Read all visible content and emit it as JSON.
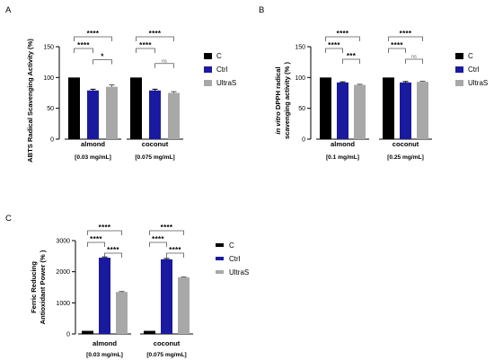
{
  "colors": {
    "C": "#000000",
    "Ctrl": "#1a1aa0",
    "UltraS": "#a8a8a8",
    "axis": "#000000",
    "bracket": "#555555"
  },
  "legend": [
    "C",
    "Ctrl",
    "UltraS"
  ],
  "chart_data": [
    {
      "panel": "A",
      "type": "bar",
      "ylabel": "ABTS Radical Scavenging Activity (%)",
      "ylabel_parts": [],
      "ylim": [
        0,
        150
      ],
      "yticks": [
        0,
        50,
        100,
        150
      ],
      "categories": [
        "almond",
        "coconut"
      ],
      "category_sublabels": [
        "[0.03 mg/mL]",
        "[0.075 mg/mL]"
      ],
      "series": [
        {
          "name": "C",
          "values": [
            100,
            100
          ],
          "errors": [
            0,
            0
          ]
        },
        {
          "name": "Ctrl",
          "values": [
            79,
            79
          ],
          "errors": [
            2,
            2
          ]
        },
        {
          "name": "UltraS",
          "values": [
            85,
            75
          ],
          "errors": [
            3,
            2
          ]
        }
      ],
      "significance": [
        {
          "category": 0,
          "from": 0,
          "to": 2,
          "label": "****"
        },
        {
          "category": 0,
          "from": 0,
          "to": 1,
          "label": "****"
        },
        {
          "category": 0,
          "from": 1,
          "to": 2,
          "label": "*"
        },
        {
          "category": 1,
          "from": 0,
          "to": 2,
          "label": "****"
        },
        {
          "category": 1,
          "from": 0,
          "to": 1,
          "label": "****"
        },
        {
          "category": 1,
          "from": 1,
          "to": 2,
          "label": "ns"
        }
      ]
    },
    {
      "panel": "B",
      "type": "bar",
      "ylabel": "",
      "ylabel_parts": [
        "in vitro",
        " DPPH radical",
        "scavenging activity (% )"
      ],
      "ylim": [
        0,
        150
      ],
      "yticks": [
        0,
        50,
        100,
        150
      ],
      "categories": [
        "almond",
        "coconut"
      ],
      "category_sublabels": [
        "[0.1 mg/mL]",
        "[0.25 mg/mL]"
      ],
      "series": [
        {
          "name": "C",
          "values": [
            100,
            100
          ],
          "errors": [
            0,
            0
          ]
        },
        {
          "name": "Ctrl",
          "values": [
            92,
            92
          ],
          "errors": [
            1,
            1.5
          ]
        },
        {
          "name": "UltraS",
          "values": [
            88,
            93
          ],
          "errors": [
            1,
            1
          ]
        }
      ],
      "significance": [
        {
          "category": 0,
          "from": 0,
          "to": 2,
          "label": "****"
        },
        {
          "category": 0,
          "from": 0,
          "to": 1,
          "label": "****"
        },
        {
          "category": 0,
          "from": 1,
          "to": 2,
          "label": "***"
        },
        {
          "category": 1,
          "from": 0,
          "to": 2,
          "label": "****"
        },
        {
          "category": 1,
          "from": 0,
          "to": 1,
          "label": "****"
        },
        {
          "category": 1,
          "from": 1,
          "to": 2,
          "label": "ns"
        }
      ]
    },
    {
      "panel": "C",
      "type": "bar",
      "ylabel": "",
      "ylabel_parts": [
        "Ferric Reducing",
        "Antioxidant Power (% )"
      ],
      "ylim": [
        0,
        3000
      ],
      "yticks": [
        0,
        1000,
        2000,
        3000
      ],
      "categories": [
        "almond",
        "coconut"
      ],
      "category_sublabels": [
        "[0.03 mg/mL]",
        "[0.075 mg/mL]"
      ],
      "series": [
        {
          "name": "C",
          "values": [
            100,
            100
          ],
          "errors": [
            0,
            0
          ]
        },
        {
          "name": "Ctrl",
          "values": [
            2450,
            2400
          ],
          "errors": [
            25,
            25
          ]
        },
        {
          "name": "UltraS",
          "values": [
            1350,
            1820
          ],
          "errors": [
            15,
            15
          ]
        }
      ],
      "significance": [
        {
          "category": 0,
          "from": 0,
          "to": 2,
          "label": "****"
        },
        {
          "category": 0,
          "from": 0,
          "to": 1,
          "label": "****"
        },
        {
          "category": 0,
          "from": 1,
          "to": 2,
          "label": "****"
        },
        {
          "category": 1,
          "from": 0,
          "to": 2,
          "label": "****"
        },
        {
          "category": 1,
          "from": 0,
          "to": 1,
          "label": "****"
        },
        {
          "category": 1,
          "from": 1,
          "to": 2,
          "label": "****"
        }
      ]
    }
  ]
}
